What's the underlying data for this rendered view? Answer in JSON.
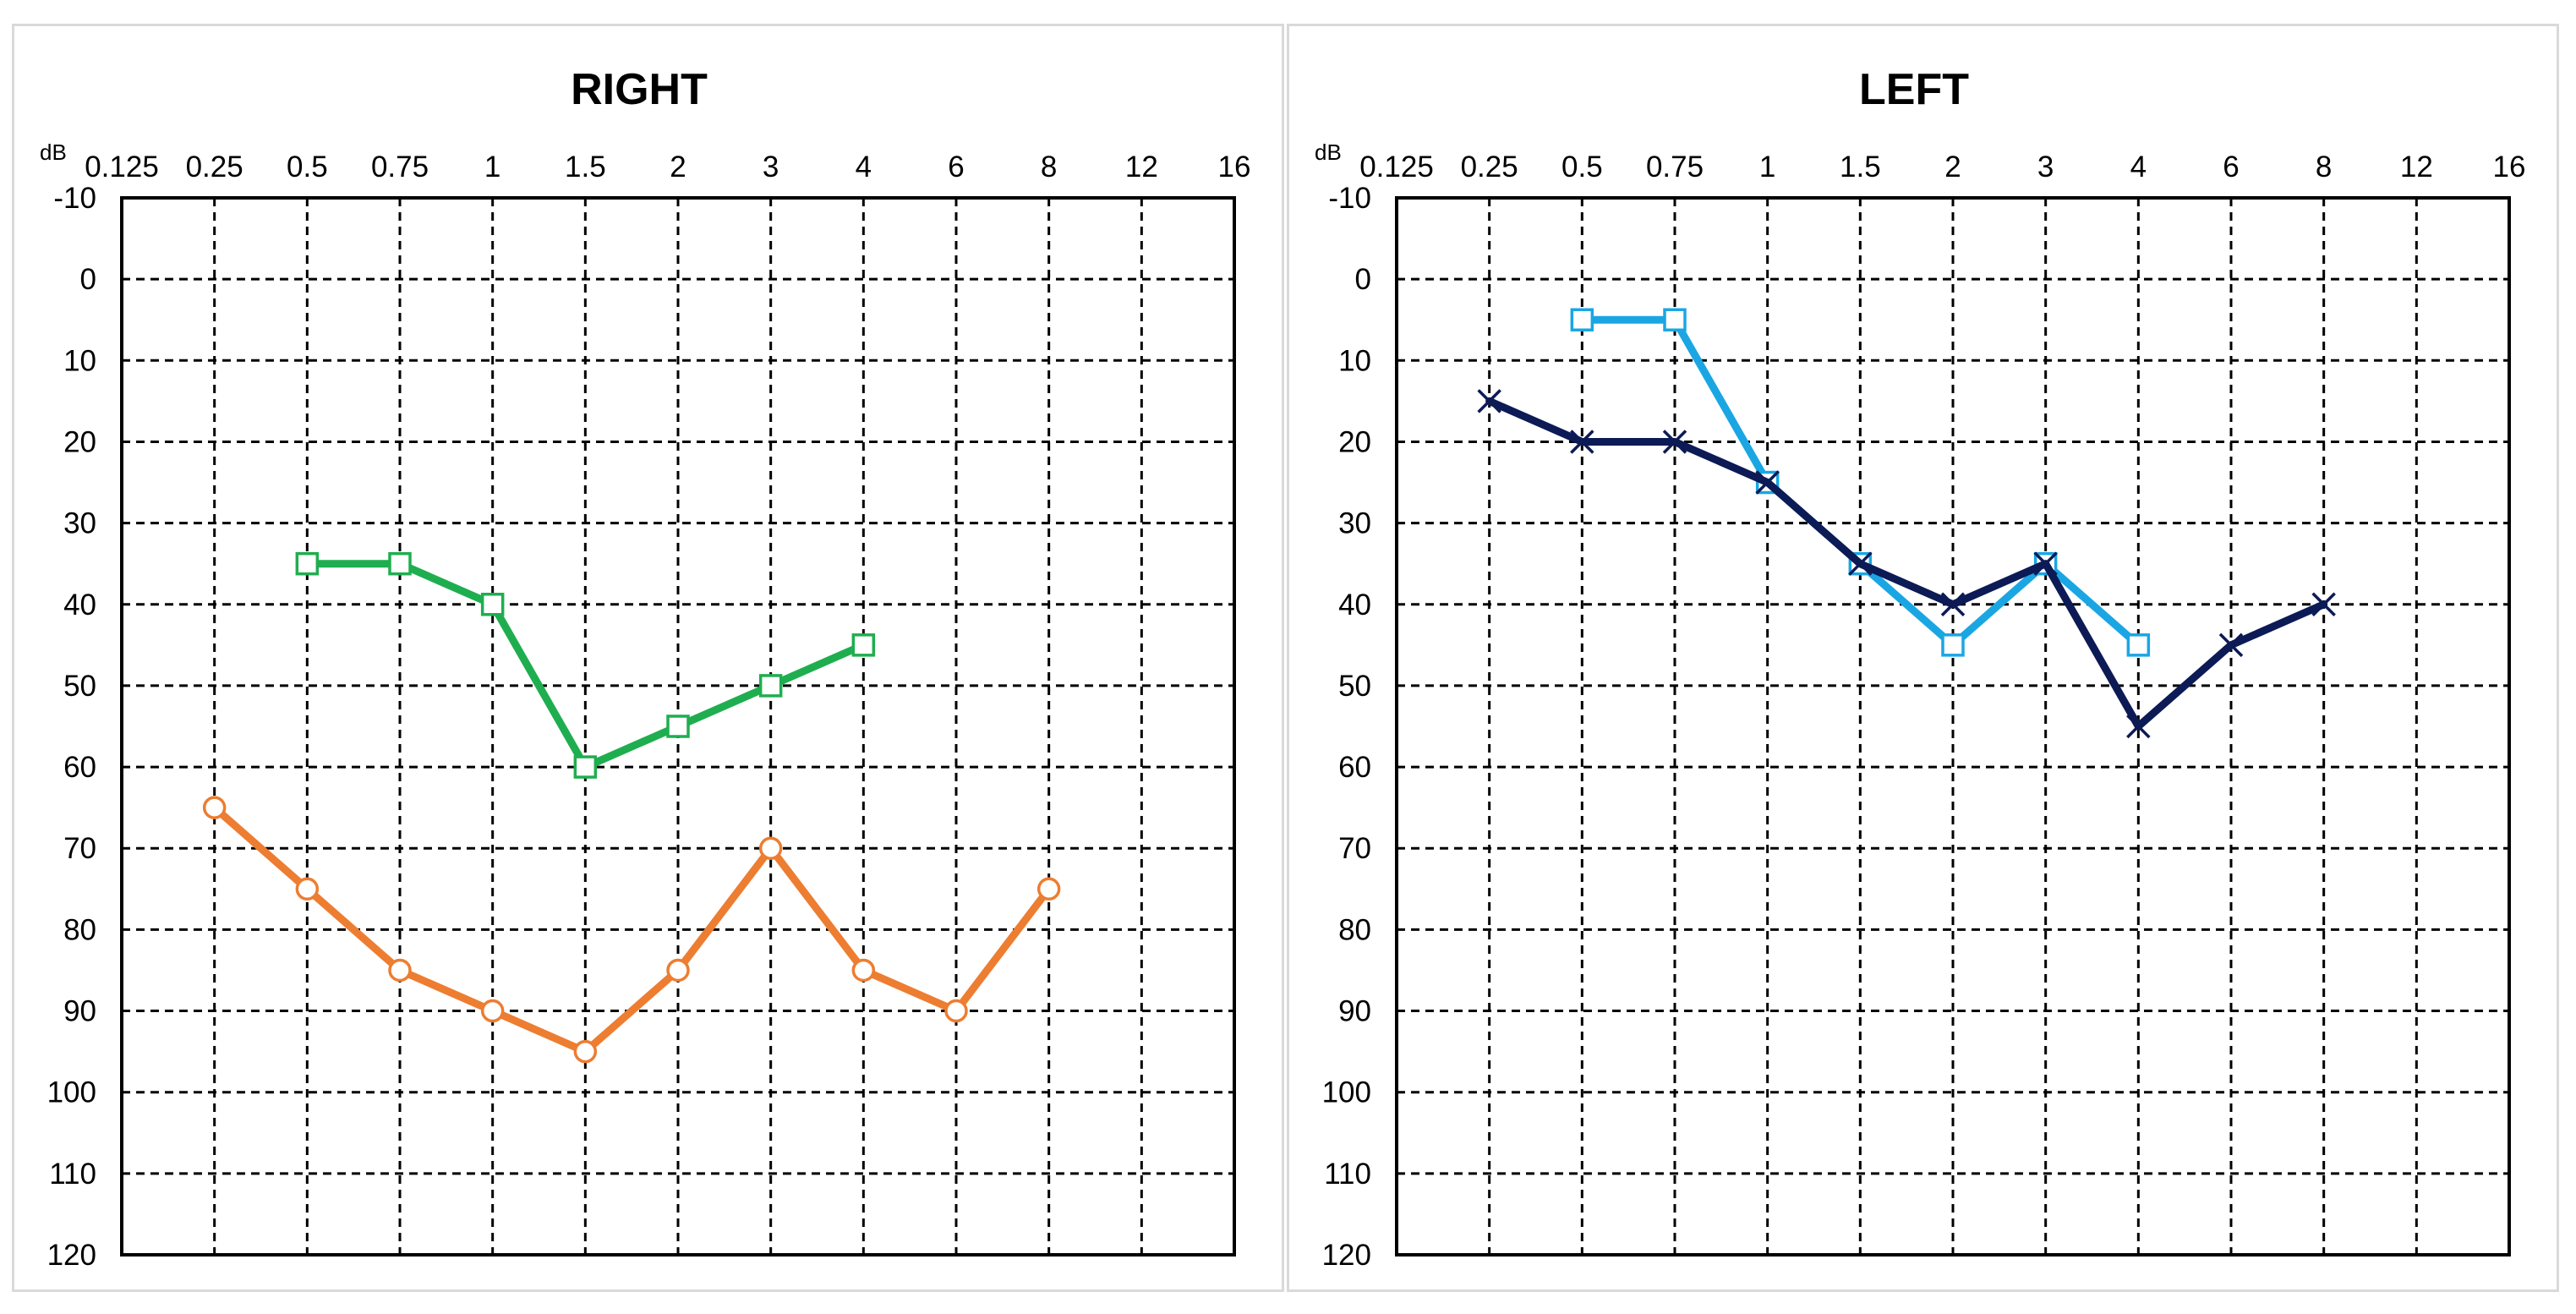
{
  "chart_data": [
    {
      "type": "line",
      "title": "RIGHT",
      "unit_label": "dB",
      "x_ticks": [
        "0.125",
        "0.25",
        "0.5",
        "0.75",
        "1",
        "1.5",
        "2",
        "3",
        "4",
        "6",
        "8",
        "12",
        "16"
      ],
      "y_ticks": [
        -10,
        0,
        10,
        20,
        30,
        40,
        50,
        60,
        70,
        80,
        90,
        100,
        110,
        120
      ],
      "ylim": [
        -10,
        120
      ],
      "y_inverted": true,
      "grid": true,
      "series": [
        {
          "color": "#1fae4f",
          "marker": "square",
          "x": [
            "0.5",
            "0.75",
            "1",
            "1.5",
            "2",
            "3",
            "4"
          ],
          "values": [
            35,
            35,
            40,
            60,
            55,
            50,
            45
          ]
        },
        {
          "color": "#ed7d31",
          "marker": "circle",
          "x": [
            "0.25",
            "0.5",
            "0.75",
            "1",
            "1.5",
            "2",
            "3",
            "4",
            "6",
            "8"
          ],
          "values": [
            65,
            75,
            85,
            90,
            95,
            85,
            70,
            85,
            90,
            75
          ]
        }
      ]
    },
    {
      "type": "line",
      "title": "LEFT",
      "unit_label": "dB",
      "x_ticks": [
        "0.125",
        "0.25",
        "0.5",
        "0.75",
        "1",
        "1.5",
        "2",
        "3",
        "4",
        "6",
        "8",
        "12",
        "16"
      ],
      "y_ticks": [
        -10,
        0,
        10,
        20,
        30,
        40,
        50,
        60,
        70,
        80,
        90,
        100,
        110,
        120
      ],
      "ylim": [
        -10,
        120
      ],
      "y_inverted": true,
      "grid": true,
      "series": [
        {
          "color": "#1aa6e3",
          "marker": "square",
          "x": [
            "0.5",
            "0.75",
            "1",
            "1.5",
            "2",
            "3",
            "4"
          ],
          "values": [
            5,
            5,
            25,
            35,
            45,
            35,
            45
          ]
        },
        {
          "color": "#0c1a55",
          "marker": "x",
          "x": [
            "0.25",
            "0.5",
            "0.75",
            "1",
            "1.5",
            "2",
            "3",
            "4",
            "6",
            "8"
          ],
          "values": [
            15,
            20,
            20,
            25,
            35,
            40,
            35,
            55,
            45,
            40
          ]
        }
      ]
    }
  ]
}
